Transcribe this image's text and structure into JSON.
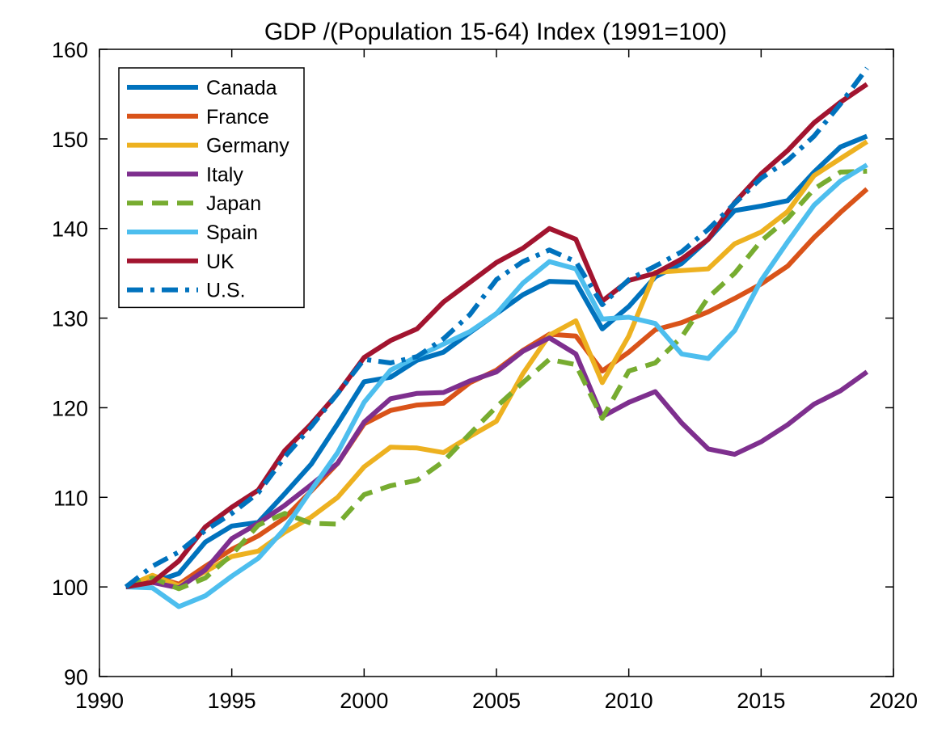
{
  "chart_data": {
    "type": "line",
    "title": "GDP /(Population 15-64) Index  (1991=100)",
    "xlabel": "",
    "ylabel": "",
    "xlim": [
      1990,
      2020
    ],
    "ylim": [
      90,
      160
    ],
    "x_ticks": [
      "1990",
      "1995",
      "2000",
      "2005",
      "2010",
      "2015",
      "2020"
    ],
    "y_ticks": [
      "90",
      "100",
      "110",
      "120",
      "130",
      "140",
      "150",
      "160"
    ],
    "grid": false,
    "legend_position": "top-left",
    "x": [
      1991,
      1992,
      1993,
      1994,
      1995,
      1996,
      1997,
      1998,
      1999,
      2000,
      2001,
      2002,
      2003,
      2004,
      2005,
      2006,
      2007,
      2008,
      2009,
      2010,
      2011,
      2012,
      2013,
      2014,
      2015,
      2016,
      2017,
      2018,
      2019
    ],
    "series": [
      {
        "name": "Canada",
        "color": "#0072BD",
        "dash": "solid",
        "values": [
          100,
          100.5,
          101.5,
          105,
          106.8,
          107.2,
          110.4,
          113.7,
          118.2,
          122.9,
          123.4,
          125.3,
          126.2,
          128.4,
          130.5,
          132.6,
          134.1,
          134.0,
          128.8,
          131.3,
          134.6,
          136.1,
          138.8,
          142.0,
          142.5,
          143.1,
          146.3,
          149.1,
          150.3
        ]
      },
      {
        "name": "France",
        "color": "#D95319",
        "dash": "solid",
        "values": [
          100,
          101.2,
          100.3,
          102.3,
          104.2,
          105.7,
          107.7,
          110.7,
          113.8,
          118.2,
          119.7,
          120.3,
          120.5,
          122.8,
          124.2,
          126.4,
          128.2,
          128.0,
          124.1,
          126.2,
          128.7,
          129.5,
          130.7,
          132.2,
          133.8,
          135.8,
          139.0,
          141.8,
          144.4
        ]
      },
      {
        "name": "Germany",
        "color": "#EDB120",
        "dash": "solid",
        "values": [
          100,
          101.3,
          100.1,
          101.7,
          103.4,
          104.0,
          106.1,
          107.8,
          110.0,
          113.4,
          115.6,
          115.5,
          115.0,
          116.8,
          118.5,
          123.8,
          128.1,
          129.7,
          122.8,
          128.0,
          135.1,
          135.3,
          135.5,
          138.3,
          139.6,
          141.9,
          145.9,
          147.8,
          149.7
        ]
      },
      {
        "name": "Italy",
        "color": "#7E2F8E",
        "dash": "solid",
        "values": [
          100,
          100.5,
          99.9,
          101.9,
          105.4,
          107.1,
          109.1,
          111.4,
          113.8,
          118.4,
          121.0,
          121.6,
          121.7,
          123.0,
          124.0,
          126.3,
          127.8,
          126.0,
          119.0,
          120.6,
          121.8,
          118.3,
          115.4,
          114.8,
          116.2,
          118.1,
          120.4,
          121.9,
          124.0
        ]
      },
      {
        "name": "Japan",
        "color": "#77AC30",
        "dash": "dashed",
        "values": [
          100,
          101.0,
          99.8,
          101.0,
          103.6,
          106.9,
          108.2,
          107.1,
          107.0,
          110.3,
          111.3,
          111.9,
          114.0,
          117.1,
          120.1,
          122.8,
          125.4,
          124.8,
          118.8,
          124.1,
          125.0,
          127.9,
          132.3,
          135.0,
          138.6,
          141.1,
          144.4,
          146.3,
          146.4
        ]
      },
      {
        "name": "Spain",
        "color": "#4DBEEE",
        "dash": "solid",
        "values": [
          100,
          99.9,
          97.8,
          99.0,
          101.2,
          103.2,
          106.5,
          110.8,
          115.0,
          120.6,
          124.2,
          125.7,
          127.1,
          128.5,
          130.5,
          133.9,
          136.3,
          135.5,
          129.9,
          130.1,
          129.4,
          126.0,
          125.5,
          128.6,
          134.2,
          138.5,
          142.6,
          145.3,
          147.1
        ]
      },
      {
        "name": "UK",
        "color": "#A2142F",
        "dash": "solid",
        "values": [
          100,
          100.5,
          102.9,
          106.7,
          108.9,
          110.8,
          115.2,
          118.2,
          121.6,
          125.6,
          127.5,
          128.8,
          131.8,
          134.0,
          136.2,
          137.8,
          140.0,
          138.8,
          131.9,
          134.2,
          135.0,
          136.6,
          138.8,
          142.9,
          146.1,
          148.7,
          151.8,
          154.1,
          156.1
        ]
      },
      {
        "name": "U.S.",
        "color": "#0072BD",
        "dash": "dashdot",
        "values": [
          100,
          102.3,
          103.9,
          106.3,
          108.2,
          110.5,
          114.5,
          117.9,
          121.6,
          125.4,
          125.0,
          125.7,
          127.7,
          130.4,
          134.3,
          136.3,
          137.6,
          136.3,
          131.5,
          134.3,
          135.8,
          137.4,
          139.9,
          142.8,
          145.6,
          147.6,
          150.3,
          153.9,
          157.9
        ]
      }
    ]
  }
}
